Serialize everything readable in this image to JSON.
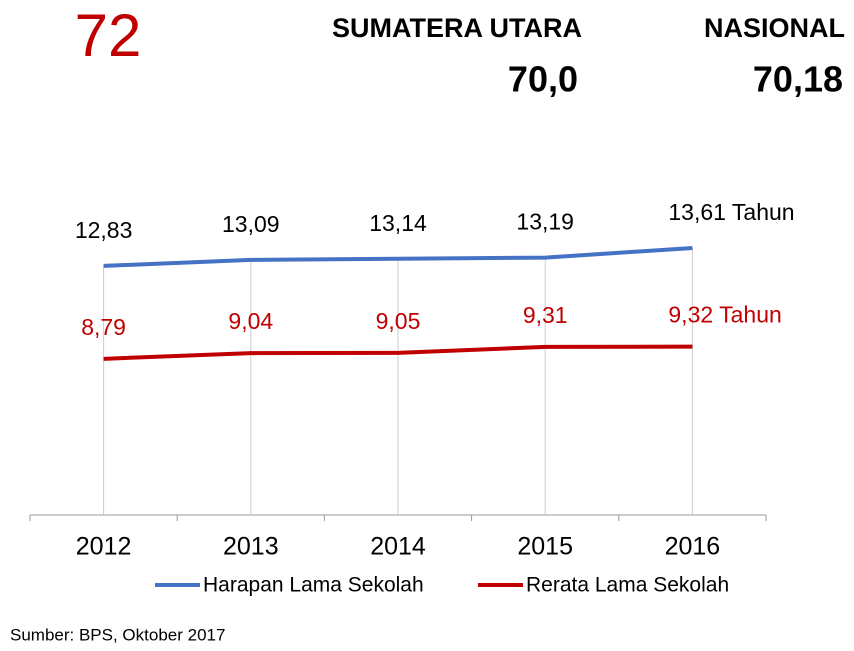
{
  "header": {
    "number": "72",
    "region": "SUMATERA UTARA",
    "region_value": "70,0",
    "national": "NASIONAL",
    "national_value": "70,18"
  },
  "chart_data": {
    "type": "line",
    "categories": [
      "2012",
      "2013",
      "2014",
      "2015",
      "2016"
    ],
    "series": [
      {
        "name": "Harapan Lama Sekolah",
        "color": "#4472c4",
        "values": [
          12.83,
          13.09,
          13.14,
          13.19,
          13.61
        ],
        "value_labels": [
          "12,83",
          "13,09",
          "13,14",
          "13,19",
          "13,61 Tahun"
        ],
        "label_color": "#000000"
      },
      {
        "name": "Rerata Lama Sekolah",
        "color": "#c00000",
        "values": [
          8.79,
          9.04,
          9.05,
          9.31,
          9.32
        ],
        "value_labels": [
          "8,79",
          "9,04",
          "9,05",
          "9,31",
          "9,32 Tahun"
        ],
        "label_color": "#c00000"
      }
    ],
    "ylim": [
      2,
      17
    ]
  },
  "source": "Sumber: BPS, Oktober 2017"
}
